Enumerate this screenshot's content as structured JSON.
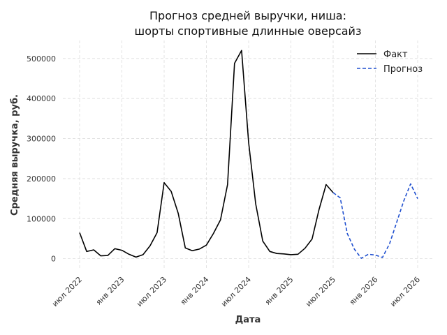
{
  "chart_data": {
    "type": "line",
    "title_lines": [
      "Прогноз средней выручки, ниша:",
      "шорты спортивные длинные оверсайз"
    ],
    "xlabel": "Дата",
    "ylabel": "Средняя выручка, руб.",
    "x_ticks": [
      "июл 2022",
      "янв 2023",
      "июл 2023",
      "янв 2024",
      "июл 2024",
      "янв 2025",
      "июл 2025",
      "янв 2026",
      "июл 2026"
    ],
    "y_ticks": [
      "0",
      "100000",
      "200000",
      "300000",
      "400000",
      "500000"
    ],
    "ylim": [
      -25000,
      545000
    ],
    "grid": true,
    "legend_position": "top-right",
    "series": [
      {
        "name": "Факт",
        "color": "#000000",
        "style": "solid",
        "x": [
          "2022-07",
          "2022-08",
          "2022-09",
          "2022-10",
          "2022-11",
          "2022-12",
          "2023-01",
          "2023-02",
          "2023-03",
          "2023-04",
          "2023-05",
          "2023-06",
          "2023-07",
          "2023-08",
          "2023-09",
          "2023-10",
          "2023-11",
          "2023-12",
          "2024-01",
          "2024-02",
          "2024-03",
          "2024-04",
          "2024-05",
          "2024-06",
          "2024-07",
          "2024-08",
          "2024-09",
          "2024-10",
          "2024-11",
          "2024-12",
          "2025-01",
          "2025-02",
          "2025-03",
          "2025-04",
          "2025-05",
          "2025-06",
          "2025-07"
        ],
        "values": [
          65000,
          18000,
          22000,
          7000,
          8000,
          25000,
          21000,
          11000,
          4000,
          10000,
          32000,
          65000,
          190000,
          168000,
          113000,
          27000,
          20000,
          24000,
          34000,
          63000,
          97000,
          185000,
          488000,
          520000,
          290000,
          137000,
          44000,
          18000,
          13000,
          12000,
          10000,
          11000,
          26000,
          49000,
          123000,
          185000,
          165000
        ]
      },
      {
        "name": "Прогноз",
        "color": "#1f4fcf",
        "style": "dashed",
        "x": [
          "2025-07",
          "2025-08",
          "2025-09",
          "2025-10",
          "2025-11",
          "2025-12",
          "2026-01",
          "2026-02",
          "2026-03",
          "2026-04",
          "2026-05",
          "2026-06",
          "2026-07"
        ],
        "values": [
          165000,
          152000,
          63000,
          24000,
          1000,
          11000,
          9000,
          3000,
          37000,
          90000,
          143000,
          187000,
          150000
        ]
      }
    ]
  }
}
